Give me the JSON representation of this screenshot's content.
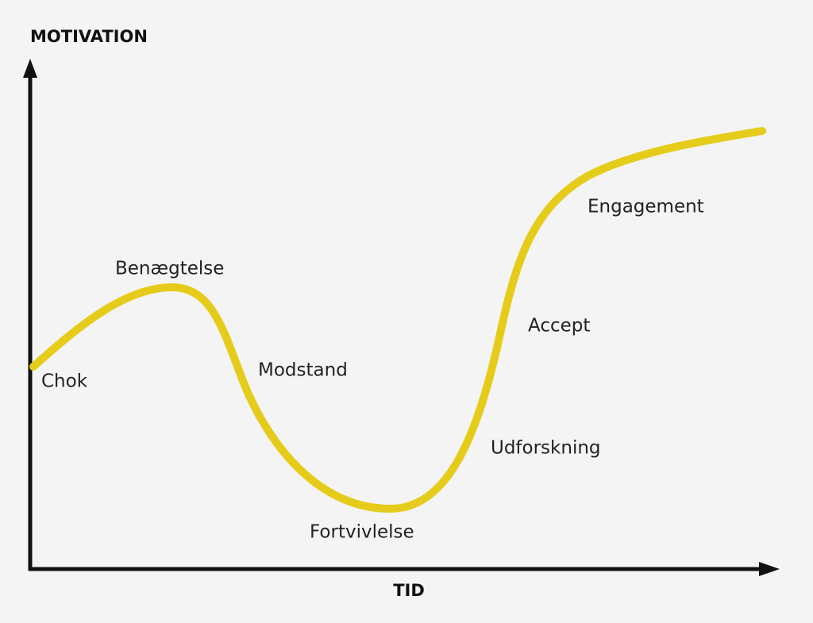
{
  "axes": {
    "y_label": "MOTIVATION",
    "x_label": "TID"
  },
  "stages": [
    "Chok",
    "Benægtelse",
    "Modstand",
    "Fortvivlelse",
    "Udforskning",
    "Accept",
    "Engagement"
  ]
}
